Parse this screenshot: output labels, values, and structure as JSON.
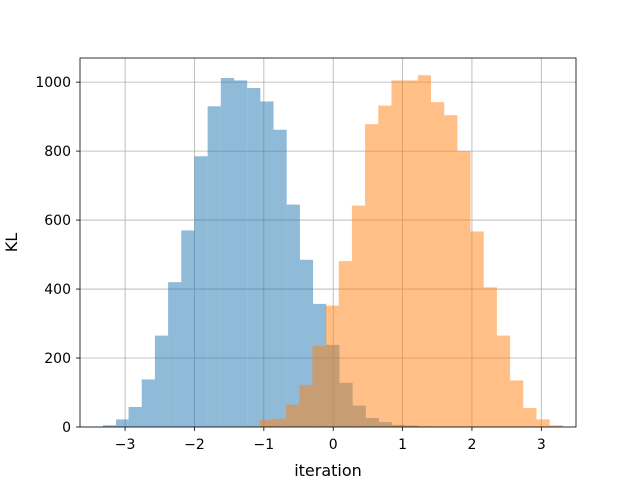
{
  "chart_data": {
    "type": "histogram",
    "title": "",
    "xlabel": "iteration",
    "ylabel": "KL",
    "xlim": [
      -3.65,
      3.5
    ],
    "ylim": [
      0,
      1070
    ],
    "xticks": [
      -3,
      -2,
      -1,
      0,
      1,
      2,
      3
    ],
    "xtick_labels": [
      "−3",
      "−2",
      "−1",
      "0",
      "1",
      "2",
      "3"
    ],
    "yticks": [
      0,
      200,
      400,
      600,
      800,
      1000
    ],
    "ytick_labels": [
      "0",
      "200",
      "400",
      "600",
      "800",
      "1000"
    ],
    "grid": true,
    "legend": "none",
    "series": [
      {
        "color": "#1f77b4",
        "alpha": 0.5,
        "bins": [
          {
            "x0": -3.32,
            "x1": -3.13,
            "value": 5
          },
          {
            "x0": -3.13,
            "x1": -2.95,
            "value": 22
          },
          {
            "x0": -2.95,
            "x1": -2.76,
            "value": 58
          },
          {
            "x0": -2.76,
            "x1": -2.57,
            "value": 138
          },
          {
            "x0": -2.57,
            "x1": -2.38,
            "value": 265
          },
          {
            "x0": -2.38,
            "x1": -2.19,
            "value": 420
          },
          {
            "x0": -2.19,
            "x1": -2.0,
            "value": 570
          },
          {
            "x0": -2.0,
            "x1": -1.81,
            "value": 785
          },
          {
            "x0": -1.81,
            "x1": -1.62,
            "value": 930
          },
          {
            "x0": -1.62,
            "x1": -1.43,
            "value": 1012
          },
          {
            "x0": -1.43,
            "x1": -1.24,
            "value": 1005
          },
          {
            "x0": -1.24,
            "x1": -1.05,
            "value": 983
          },
          {
            "x0": -1.05,
            "x1": -0.86,
            "value": 944
          },
          {
            "x0": -0.86,
            "x1": -0.67,
            "value": 862
          },
          {
            "x0": -0.67,
            "x1": -0.48,
            "value": 645
          },
          {
            "x0": -0.48,
            "x1": -0.29,
            "value": 485
          },
          {
            "x0": -0.29,
            "x1": -0.1,
            "value": 357
          },
          {
            "x0": -0.1,
            "x1": 0.09,
            "value": 238
          },
          {
            "x0": 0.09,
            "x1": 0.28,
            "value": 128
          },
          {
            "x0": 0.28,
            "x1": 0.47,
            "value": 62
          },
          {
            "x0": 0.47,
            "x1": 0.66,
            "value": 26
          },
          {
            "x0": 0.66,
            "x1": 0.85,
            "value": 14
          },
          {
            "x0": 0.85,
            "x1": 1.04,
            "value": 6
          },
          {
            "x0": 1.04,
            "x1": 1.23,
            "value": 4
          },
          {
            "x0": 1.23,
            "x1": 1.42,
            "value": 2
          },
          {
            "x0": 1.42,
            "x1": 1.61,
            "value": 1
          }
        ]
      },
      {
        "color": "#ff7f0e",
        "alpha": 0.5,
        "bins": [
          {
            "x0": -1.44,
            "x1": -1.25,
            "value": 1
          },
          {
            "x0": -1.25,
            "x1": -1.06,
            "value": 2
          },
          {
            "x0": -1.06,
            "x1": -0.87,
            "value": 20
          },
          {
            "x0": -0.87,
            "x1": -0.68,
            "value": 24
          },
          {
            "x0": -0.68,
            "x1": -0.49,
            "value": 65
          },
          {
            "x0": -0.49,
            "x1": -0.3,
            "value": 122
          },
          {
            "x0": -0.3,
            "x1": -0.11,
            "value": 235
          },
          {
            "x0": -0.11,
            "x1": 0.08,
            "value": 352
          },
          {
            "x0": 0.08,
            "x1": 0.27,
            "value": 481
          },
          {
            "x0": 0.27,
            "x1": 0.46,
            "value": 642
          },
          {
            "x0": 0.46,
            "x1": 0.65,
            "value": 878
          },
          {
            "x0": 0.65,
            "x1": 0.84,
            "value": 932
          },
          {
            "x0": 0.84,
            "x1": 1.03,
            "value": 1005
          },
          {
            "x0": 1.03,
            "x1": 1.22,
            "value": 1005
          },
          {
            "x0": 1.22,
            "x1": 1.41,
            "value": 1020
          },
          {
            "x0": 1.41,
            "x1": 1.6,
            "value": 942
          },
          {
            "x0": 1.6,
            "x1": 1.79,
            "value": 904
          },
          {
            "x0": 1.79,
            "x1": 1.98,
            "value": 800
          },
          {
            "x0": 1.98,
            "x1": 2.17,
            "value": 567
          },
          {
            "x0": 2.17,
            "x1": 2.36,
            "value": 405
          },
          {
            "x0": 2.36,
            "x1": 2.55,
            "value": 265
          },
          {
            "x0": 2.55,
            "x1": 2.74,
            "value": 135
          },
          {
            "x0": 2.74,
            "x1": 2.93,
            "value": 55
          },
          {
            "x0": 2.93,
            "x1": 3.12,
            "value": 22
          },
          {
            "x0": 3.12,
            "x1": 3.31,
            "value": 5
          }
        ]
      }
    ]
  }
}
